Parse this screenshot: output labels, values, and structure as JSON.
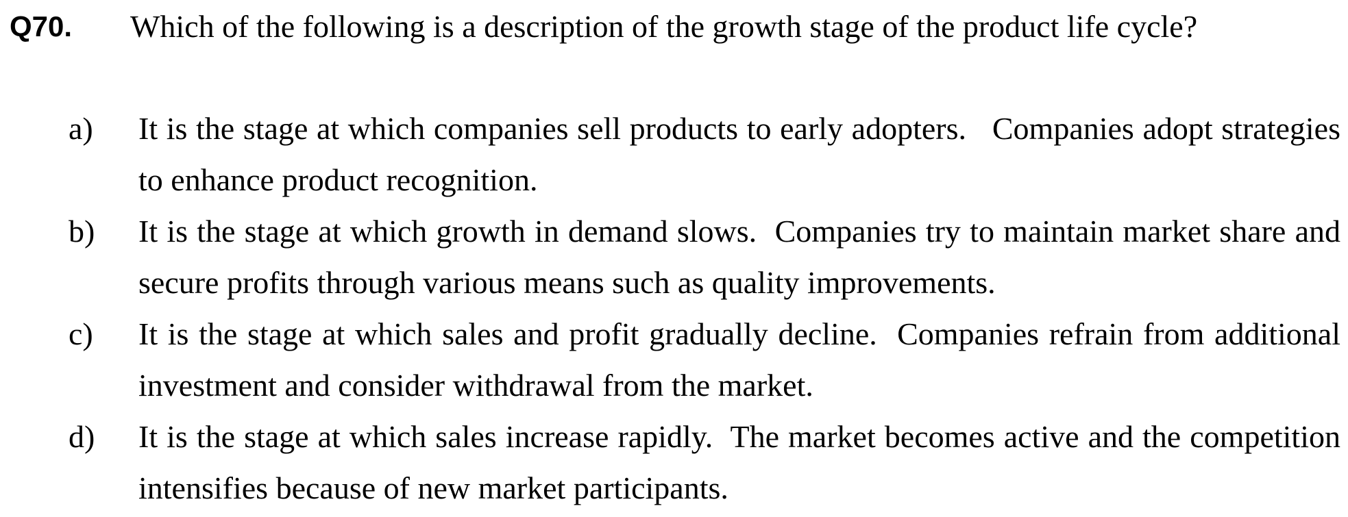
{
  "question": {
    "number": "Q70.",
    "text": "Which of the following is a description of the growth stage of the product life cycle?"
  },
  "options": [
    {
      "letter": "a)",
      "text": "It is the stage at which companies sell products to early adopters.   Companies adopt strategies to enhance product recognition."
    },
    {
      "letter": "b)",
      "text": "It is the stage at which growth in demand slows.  Companies try to maintain market share and secure profits through various means such as quality improvements."
    },
    {
      "letter": "c)",
      "text": "It is the stage at which sales and profit gradually decline.  Companies refrain from additional investment and consider withdrawal from the market."
    },
    {
      "letter": "d)",
      "text": "It is the stage at which sales increase rapidly.  The market becomes active and the competition intensifies because of new market participants."
    }
  ]
}
